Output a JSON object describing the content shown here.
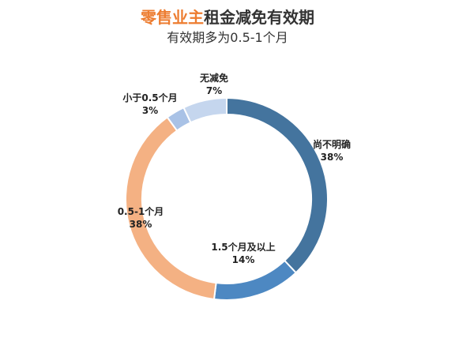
{
  "title": {
    "accent": "零售业主",
    "rest": "租金减免有效期"
  },
  "subtitle": "有效期多为0.5-1个月",
  "chart_data": {
    "type": "pie",
    "variant": "donut",
    "slices": [
      {
        "label": "尚不明确",
        "value": 38,
        "pct_label": "38%",
        "color": "#44749e"
      },
      {
        "label": "1.5个月及以上",
        "value": 14,
        "pct_label": "14%",
        "color": "#4d88c2"
      },
      {
        "label": "0.5-1个月",
        "value": 38,
        "pct_label": "38%",
        "color": "#f4b183"
      },
      {
        "label": "小于0.5个月",
        "value": 3,
        "pct_label": "3%",
        "color": "#a9c2e6"
      },
      {
        "label": "无减免",
        "value": 7,
        "pct_label": "7%",
        "color": "#c5d6ee"
      }
    ],
    "legend": "none"
  }
}
